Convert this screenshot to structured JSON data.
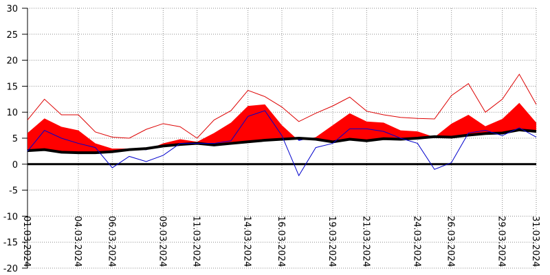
{
  "chart_data": {
    "type": "line",
    "categories": [
      "01.03.2024",
      null,
      null,
      "04.03.2024",
      null,
      "06.03.2024",
      null,
      null,
      "09.03.2024",
      null,
      "11.03.2024",
      null,
      null,
      "14.03.2024",
      null,
      "16.03.2024",
      null,
      null,
      "19.03.2024",
      null,
      "21.03.2024",
      null,
      null,
      "24.03.2024",
      null,
      "26.03.2024",
      null,
      null,
      "29.03.2024",
      null,
      "31.03.2024"
    ],
    "series": [
      {
        "color": "#000000",
        "baseline": true,
        "values": [
          2.6,
          2.8,
          2.3,
          2.2,
          2.2,
          2.4,
          2.8,
          3.0,
          3.5,
          3.8,
          4.0,
          3.7,
          4.0,
          4.3,
          4.6,
          4.8,
          5.0,
          4.8,
          4.3,
          4.8,
          4.5,
          4.9,
          4.8,
          5.0,
          5.3,
          5.2,
          5.6,
          5.9,
          6.0,
          6.6,
          6.3
        ]
      },
      {
        "color": "#ff0000",
        "fill": {
          "above": "#ff0000",
          "below": "#0000dd"
        },
        "values": [
          6.0,
          8.8,
          7.2,
          6.5,
          4.0,
          3.0,
          3.0,
          2.7,
          4.0,
          4.8,
          4.3,
          6.0,
          8.0,
          11.2,
          11.5,
          7.5,
          4.5,
          5.2,
          7.5,
          9.8,
          8.2,
          8.0,
          6.5,
          6.3,
          5.2,
          7.8,
          9.5,
          7.3,
          8.7,
          11.8,
          8.0
        ]
      },
      {
        "color": "#0000cc",
        "values": [
          2.5,
          6.5,
          5.0,
          4.0,
          3.2,
          -0.7,
          1.5,
          0.5,
          1.7,
          4.0,
          4.0,
          4.0,
          4.5,
          9.2,
          10.3,
          5.5,
          -2.2,
          3.2,
          4.0,
          6.8,
          6.8,
          6.3,
          5.0,
          4.0,
          -1.0,
          0.3,
          6.0,
          6.5,
          5.5,
          7.0,
          5.2
        ]
      },
      {
        "color": "#dd0000",
        "values": [
          8.5,
          12.5,
          9.5,
          9.5,
          6.2,
          5.2,
          5.0,
          6.7,
          7.8,
          7.2,
          5.0,
          8.5,
          10.3,
          14.2,
          13.0,
          11.0,
          8.2,
          9.8,
          11.2,
          12.9,
          10.2,
          9.5,
          9.0,
          8.8,
          8.7,
          13.2,
          15.5,
          10.0,
          12.5,
          17.3,
          11.5
        ]
      }
    ],
    "ylim": [
      -20,
      30
    ],
    "yticks": [
      -20,
      -15,
      -10,
      -5,
      0,
      5,
      10,
      15,
      20,
      25,
      30
    ],
    "grid": true
  }
}
